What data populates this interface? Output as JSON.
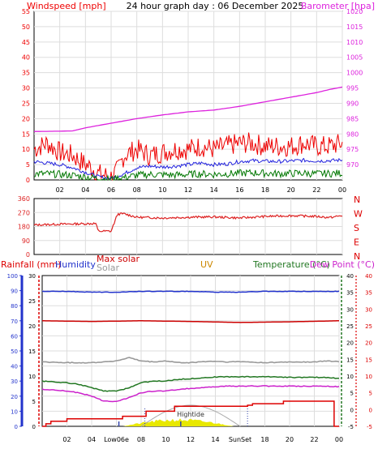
{
  "title": "24 hour graph day : 06 December 2025",
  "colors": {
    "windspeed": "#ee0000",
    "windavg": "#2222dd",
    "windgreen": "#007700",
    "barometer": "#dd22dd",
    "direction": "#dd2222",
    "humidity": "#2233cc",
    "maxsolar": "#cc0000",
    "solar": "#999999",
    "uv": "#cc8800",
    "temperature": "#227722",
    "dewpoint": "#cc22cc",
    "rainfall": "#dd0000",
    "solarfill": "#e8e800",
    "tideline": "#aaaaaa",
    "marker": "#3344aa"
  },
  "chart_data": [
    {
      "type": "line",
      "name": "wind-baro",
      "title": "24 hour graph day : 06 December 2025",
      "ylabel_left": "Windspeed [mph]",
      "ylabel_right": "Barometer [hpa]",
      "x_ticks": [
        "02",
        "04",
        "06",
        "08",
        "10",
        "12",
        "14",
        "16",
        "18",
        "20",
        "22",
        "00"
      ],
      "ylim_left": [
        0,
        55
      ],
      "yticks_left": [
        "0",
        "5",
        "10",
        "15",
        "20",
        "25",
        "30",
        "35",
        "40",
        "45",
        "50",
        "55"
      ],
      "ylim_right": [
        965,
        1020
      ],
      "yticks_right": [
        "970",
        "975",
        "980",
        "985",
        "990",
        "995",
        "1000",
        "1005",
        "1010",
        "1015",
        "1020"
      ],
      "series": [
        {
          "key": "gust",
          "x": [
            0,
            1,
            2,
            3,
            4,
            4.5,
            5,
            6,
            6.5,
            7,
            8,
            9,
            10,
            11,
            12,
            13,
            14,
            15,
            16,
            17,
            18,
            19,
            20,
            21,
            22,
            23,
            24
          ],
          "values": [
            10,
            12,
            9,
            8,
            5,
            4,
            2,
            1,
            3,
            8,
            10,
            8,
            9,
            10,
            10,
            11,
            10,
            11,
            12,
            12,
            11,
            11,
            11,
            12,
            11,
            11,
            12
          ]
        },
        {
          "key": "avg",
          "x": [
            0,
            1,
            2,
            3,
            4,
            5,
            6,
            7,
            8,
            9,
            10,
            11,
            12,
            13,
            14,
            15,
            16,
            17,
            18,
            19,
            20,
            21,
            22,
            23,
            24
          ],
          "values": [
            6,
            5.5,
            5,
            4,
            2.5,
            1,
            0.5,
            2,
            4,
            4.5,
            4.2,
            4.5,
            5,
            5.5,
            5,
            5.2,
            6,
            6.3,
            6.1,
            6,
            6.2,
            6.4,
            6.2,
            6.3,
            6.5
          ]
        },
        {
          "key": "green",
          "x": [
            0,
            1,
            2,
            3,
            4,
            5,
            6,
            7,
            8,
            9,
            10,
            11,
            12,
            13,
            14,
            15,
            16,
            17,
            18,
            19,
            20,
            21,
            22,
            23,
            24
          ],
          "values": [
            2,
            2,
            1.8,
            1.5,
            1,
            0.5,
            0.2,
            0.8,
            1.5,
            1.8,
            1.7,
            1.6,
            1.8,
            2,
            1.8,
            2,
            2.2,
            2.3,
            2.2,
            2,
            2.1,
            2.2,
            2,
            2.1,
            2.2
          ]
        },
        {
          "key": "baro",
          "x": [
            0,
            2,
            3,
            4,
            6,
            8,
            10,
            12,
            14,
            16,
            18,
            20,
            22,
            23,
            24
          ],
          "values": [
            980.8,
            980.9,
            981,
            982,
            983.5,
            985,
            986.2,
            987.2,
            987.8,
            989,
            990.5,
            992,
            993.5,
            994.5,
            995.3
          ]
        }
      ]
    },
    {
      "type": "scatter",
      "name": "wind-direction",
      "yticks_left": [
        "0",
        "90",
        "180",
        "270",
        "360"
      ],
      "compass": [
        "N",
        "W",
        "S",
        "E",
        "N"
      ],
      "ylim": [
        0,
        360
      ],
      "x": [
        0,
        2,
        4,
        4.8,
        5,
        6,
        6.5,
        7,
        8,
        10,
        12,
        14,
        16,
        18,
        20,
        22,
        23,
        24
      ],
      "values": [
        190,
        195,
        198,
        200,
        150,
        150,
        260,
        262,
        240,
        235,
        240,
        242,
        235,
        245,
        250,
        245,
        238,
        250
      ]
    },
    {
      "type": "line",
      "name": "multi",
      "legend": [
        "Rainfall (mm)",
        "Humidity",
        "Max solar",
        "Solar",
        "UV",
        "Temperature (°C)",
        "Dew Point (°C)"
      ],
      "x_ticks": [
        "02",
        "04",
        "Low06e",
        "08",
        "10",
        "12",
        "14",
        "SunSet",
        "18",
        "20",
        "22",
        "00"
      ],
      "yticks_humidity": [
        "0",
        "10",
        "20",
        "30",
        "40",
        "50",
        "60",
        "70",
        "80",
        "90",
        "100"
      ],
      "yticks_rain": [
        "0",
        "5",
        "10",
        "15",
        "20",
        "25",
        "30"
      ],
      "yticks_temp": [
        "-5",
        "0",
        "5",
        "10",
        "15",
        "20",
        "25",
        "30",
        "35",
        "40"
      ],
      "ylim_humidity": [
        0,
        100
      ],
      "ylim_temp": [
        -5,
        40
      ],
      "annotation_hightide": "Hightide",
      "series": [
        {
          "key": "humidity",
          "x": [
            0,
            2,
            4,
            6,
            8,
            10,
            12,
            14,
            16,
            18,
            20,
            22,
            24
          ],
          "values": [
            89.5,
            89.5,
            89,
            89,
            89.5,
            89.5,
            89.5,
            89,
            89,
            89.5,
            89.5,
            89.5,
            89.5
          ]
        },
        {
          "key": "maxsolar",
          "x": [
            0,
            4,
            8,
            12,
            16,
            20,
            24
          ],
          "values": [
            26.5,
            26.3,
            26.5,
            26.3,
            26,
            26.2,
            26.5
          ]
        },
        {
          "key": "solar",
          "x": [
            0,
            2,
            4,
            6,
            7,
            8,
            9,
            10,
            11,
            12,
            13,
            14,
            15,
            16,
            18,
            20,
            22,
            23,
            24
          ],
          "values": [
            14.2,
            14,
            14,
            14.5,
            15.5,
            14.5,
            14.2,
            14.5,
            14,
            14,
            14.3,
            14.4,
            14.2,
            14.3,
            14,
            14.2,
            14.2,
            14.5,
            14.3
          ]
        },
        {
          "key": "temperature",
          "x": [
            0,
            1,
            2,
            3,
            4,
            5,
            6,
            7,
            8,
            9,
            10,
            11,
            12,
            13,
            14,
            15,
            16,
            17,
            18,
            19,
            20,
            21,
            22,
            23,
            24
          ],
          "values": [
            8.5,
            8.2,
            8,
            7.5,
            6.5,
            5.5,
            5.5,
            6.5,
            8,
            8.5,
            8.5,
            9,
            9.2,
            9.5,
            9.7,
            9.8,
            9.8,
            9.8,
            9.8,
            9.8,
            9.6,
            9.6,
            9.6,
            9.6,
            9.3
          ]
        },
        {
          "key": "dewpoint",
          "x": [
            0,
            1,
            2,
            3,
            4,
            5,
            6,
            7,
            8,
            9,
            10,
            11,
            12,
            13,
            14,
            15,
            16,
            17,
            18,
            19,
            20,
            21,
            22,
            23,
            24
          ],
          "values": [
            6,
            5.8,
            5.5,
            5,
            4,
            2.5,
            2.5,
            3.5,
            5,
            5.5,
            5.5,
            6,
            6.3,
            6.5,
            6.8,
            7,
            7,
            7,
            7,
            7,
            7,
            7,
            7,
            7,
            6.8
          ]
        },
        {
          "key": "rainfall",
          "x": [
            0,
            0.3,
            0.7,
            1.5,
            2,
            6,
            6.5,
            8.4,
            10.3,
            10.7,
            11.5,
            15,
            16,
            16.6,
            17,
            18.5,
            19.5,
            23.4,
            23.6,
            24
          ],
          "values": [
            0,
            0.5,
            1,
            1,
            1.5,
            1.5,
            2,
            3,
            3,
            4,
            4,
            4,
            4,
            4.2,
            4.5,
            4.5,
            5,
            5,
            0,
            0
          ]
        }
      ]
    }
  ]
}
